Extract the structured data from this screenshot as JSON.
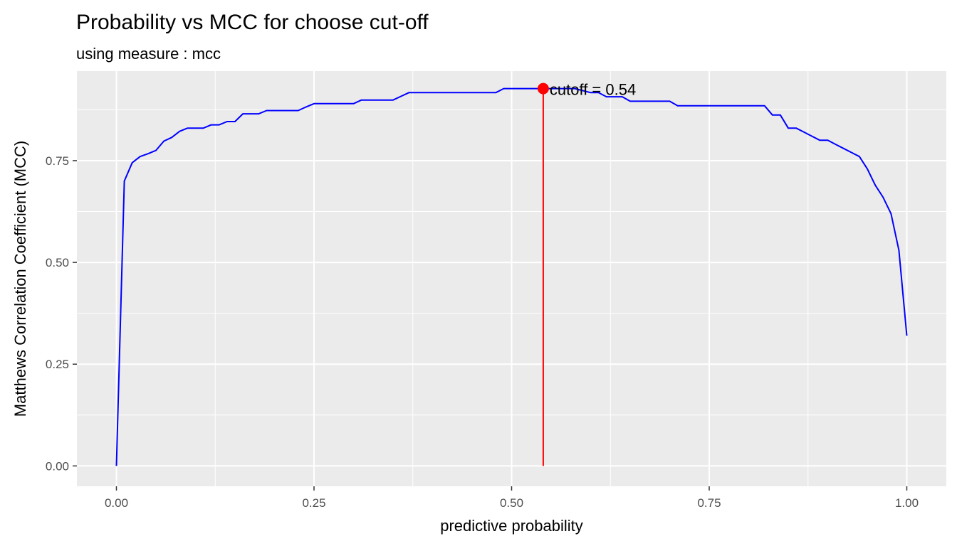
{
  "chart_data": {
    "type": "line",
    "title": "Probability vs MCC for choose cut-off",
    "subtitle": "using measure : mcc",
    "xlabel": "predictive probability",
    "ylabel": "Matthews Correlation Coefficient (MCC)",
    "xlim": [
      -0.05,
      1.05
    ],
    "ylim": [
      -0.05,
      0.97
    ],
    "x_ticks": [
      0,
      0.25,
      0.5,
      0.75,
      1
    ],
    "x_tick_labels": [
      "0.00",
      "0.25",
      "0.50",
      "0.75",
      "1.00"
    ],
    "y_ticks": [
      0,
      0.25,
      0.5,
      0.75
    ],
    "y_tick_labels": [
      "0.00",
      "0.25",
      "0.50",
      "0.75"
    ],
    "grid": true,
    "series": [
      {
        "color": "#0000ff",
        "x": [
          0.0,
          0.01,
          0.02,
          0.03,
          0.04,
          0.05,
          0.06,
          0.07,
          0.08,
          0.09,
          0.1,
          0.11,
          0.12,
          0.13,
          0.14,
          0.15,
          0.16,
          0.17,
          0.18,
          0.19,
          0.2,
          0.21,
          0.22,
          0.23,
          0.24,
          0.25,
          0.26,
          0.27,
          0.28,
          0.29,
          0.3,
          0.31,
          0.32,
          0.33,
          0.34,
          0.35,
          0.36,
          0.37,
          0.38,
          0.4,
          0.42,
          0.44,
          0.46,
          0.48,
          0.49,
          0.5,
          0.52,
          0.54,
          0.56,
          0.58,
          0.6,
          0.61,
          0.62,
          0.63,
          0.64,
          0.65,
          0.66,
          0.68,
          0.7,
          0.71,
          0.72,
          0.74,
          0.76,
          0.78,
          0.8,
          0.82,
          0.83,
          0.84,
          0.85,
          0.86,
          0.87,
          0.88,
          0.89,
          0.9,
          0.91,
          0.92,
          0.93,
          0.94,
          0.95,
          0.96,
          0.97,
          0.98,
          0.99,
          1.0
        ],
        "y": [
          0.0,
          0.7,
          0.745,
          0.76,
          0.767,
          0.775,
          0.798,
          0.807,
          0.822,
          0.83,
          0.83,
          0.83,
          0.838,
          0.838,
          0.846,
          0.846,
          0.865,
          0.865,
          0.865,
          0.873,
          0.873,
          0.873,
          0.873,
          0.873,
          0.882,
          0.89,
          0.89,
          0.89,
          0.89,
          0.89,
          0.89,
          0.899,
          0.899,
          0.899,
          0.899,
          0.899,
          0.908,
          0.917,
          0.917,
          0.917,
          0.917,
          0.917,
          0.917,
          0.917,
          0.927,
          0.927,
          0.927,
          0.927,
          0.927,
          0.927,
          0.917,
          0.917,
          0.907,
          0.907,
          0.907,
          0.896,
          0.896,
          0.896,
          0.896,
          0.885,
          0.885,
          0.885,
          0.885,
          0.885,
          0.885,
          0.885,
          0.862,
          0.862,
          0.83,
          0.83,
          0.82,
          0.81,
          0.8,
          0.8,
          0.79,
          0.78,
          0.77,
          0.76,
          0.73,
          0.69,
          0.66,
          0.62,
          0.53,
          0.32
        ]
      }
    ],
    "cutoff": {
      "x": 0.54,
      "y": 0.927,
      "color": "#ff0000",
      "label": "cutoff = 0.54"
    }
  }
}
